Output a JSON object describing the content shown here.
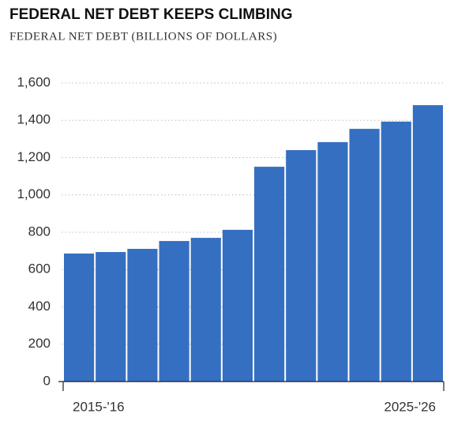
{
  "chart_data": {
    "type": "bar",
    "title": "FEDERAL NET DEBT KEEPS CLIMBING",
    "subtitle": "FEDERAL NET DEBT (BILLIONS OF DOLLARS)",
    "categories": [
      "2015-'16",
      null,
      null,
      null,
      null,
      null,
      null,
      null,
      null,
      null,
      null,
      "2025-'26"
    ],
    "values": [
      686,
      694,
      711,
      753,
      770,
      813,
      1151,
      1240,
      1283,
      1354,
      1393,
      1481
    ],
    "color": "#356fc1",
    "ylim": [
      0,
      1600
    ],
    "yticks": [
      0,
      200,
      400,
      600,
      800,
      {
        "value": 1000,
        "label": "1,000"
      },
      {
        "value": 1200,
        "label": "1,200"
      },
      {
        "value": 1400,
        "label": "1,400"
      },
      {
        "value": 1600,
        "label": "1,600"
      }
    ],
    "grid": true
  }
}
